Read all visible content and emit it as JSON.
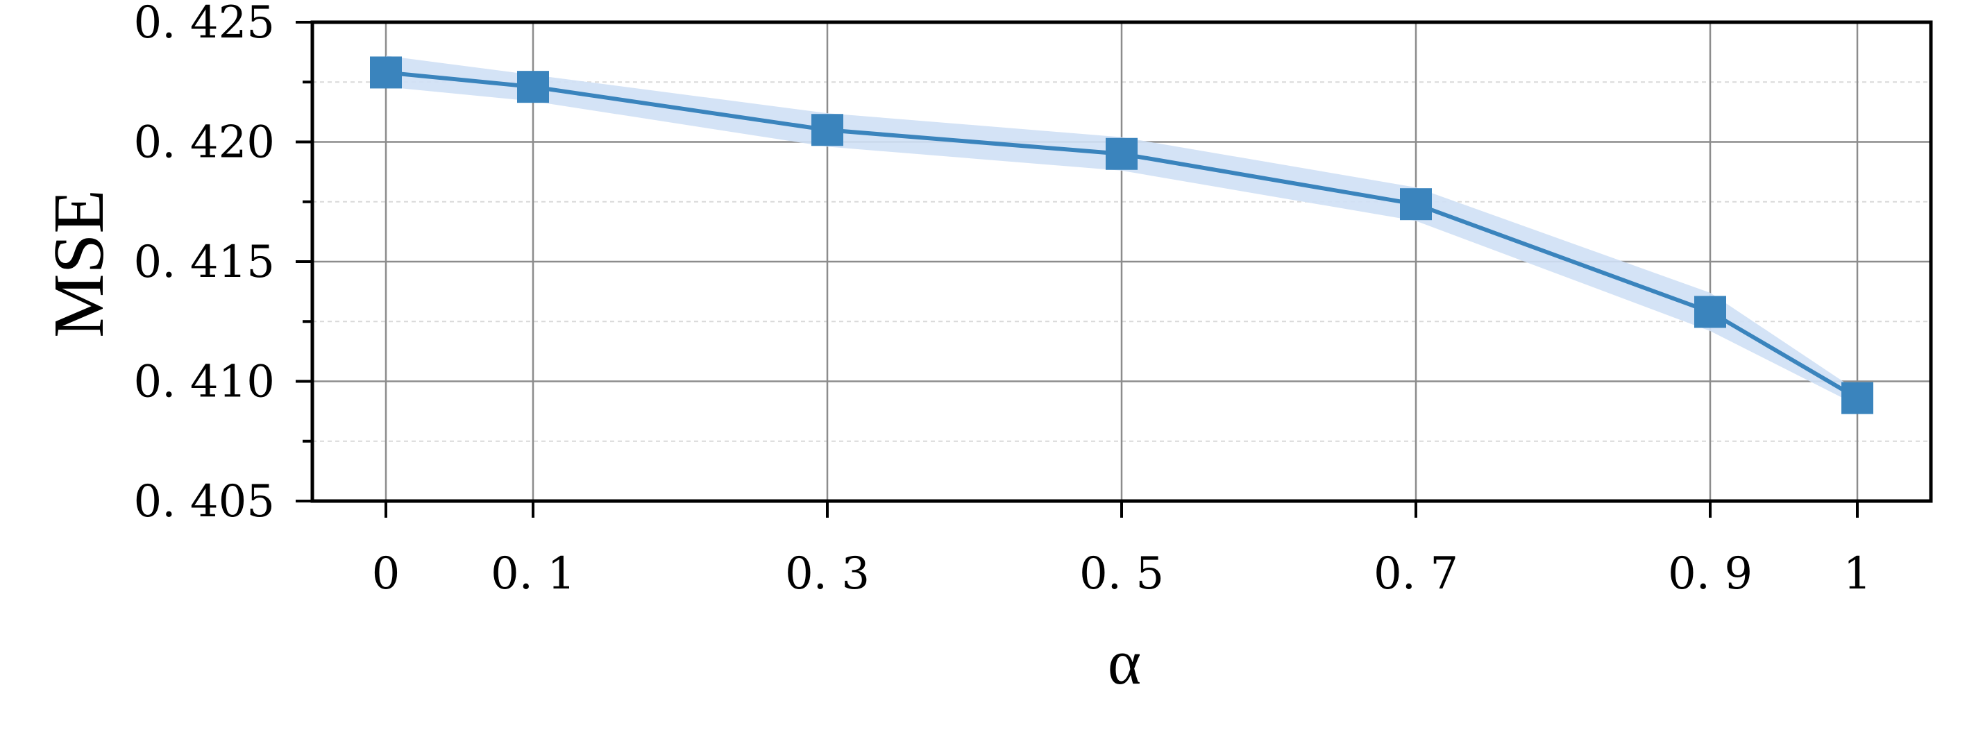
{
  "chart_data": {
    "type": "line",
    "xlabel": "α",
    "ylabel": "MSE",
    "x": [
      0,
      0.1,
      0.3,
      0.5,
      0.7,
      0.9,
      1
    ],
    "x_tick_labels": [
      "0",
      "0. 1",
      "0. 3",
      "0. 5",
      "0. 7",
      "0. 9",
      "1"
    ],
    "y_ticks": [
      0.405,
      0.41,
      0.415,
      0.42,
      0.425
    ],
    "y_tick_labels": [
      "0. 405",
      "0. 410",
      "0. 415",
      "0. 420",
      "0. 425"
    ],
    "ylim": [
      0.405,
      0.425
    ],
    "xlim": [
      -0.05,
      1.05
    ],
    "series": [
      {
        "values": [
          0.4229,
          0.4223,
          0.4205,
          0.4195,
          0.4174,
          0.4129,
          0.4093
        ],
        "band_upper": [
          0.4236,
          0.4228,
          0.4212,
          0.4202,
          0.4181,
          0.4137,
          0.4096
        ],
        "band_lower": [
          0.4223,
          0.4217,
          0.4198,
          0.4188,
          0.4167,
          0.4121,
          0.409
        ],
        "marker": "square",
        "color": "#3a84bd",
        "band_color": "#cfe0f5"
      }
    ],
    "grid": true,
    "minor_grid": true
  }
}
